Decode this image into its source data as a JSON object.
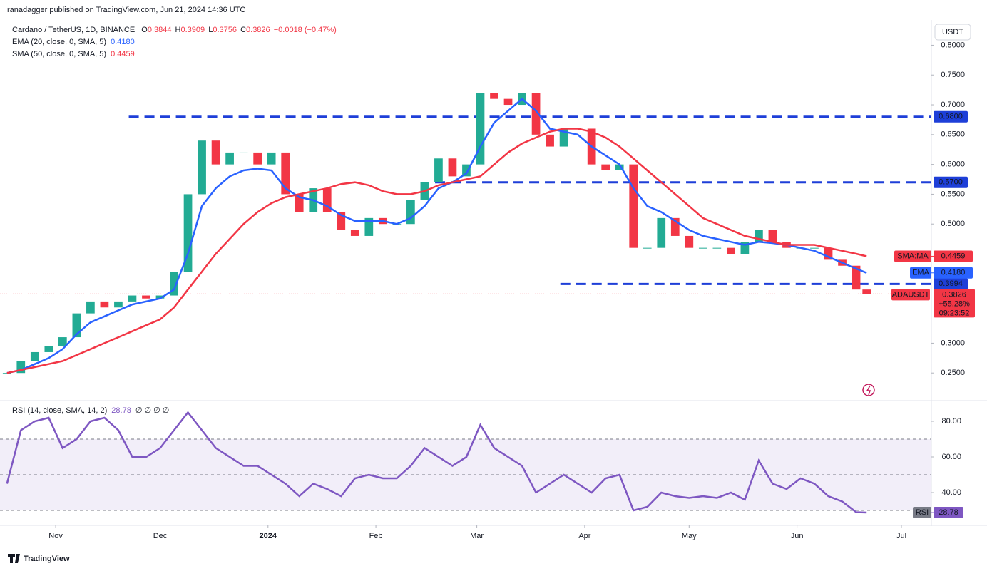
{
  "header": {
    "publisher": "ranadagger published on TradingView.com, Jun 21, 2024 14:36 UTC"
  },
  "legend": {
    "symbol": "Cardano / TetherUS, 1D, BINANCE",
    "ohlc": [
      {
        "key": "O",
        "value": "0.3844"
      },
      {
        "key": "H",
        "value": "0.3909"
      },
      {
        "key": "L",
        "value": "0.3756"
      },
      {
        "key": "C",
        "value": "0.3826"
      }
    ],
    "change": "−0.0018 (−0.47%)"
  },
  "footer": "TradingView",
  "chart_data": [
    {
      "type": "candlestick",
      "unit": "USDT",
      "symbol": "ADAUSDT",
      "up_color": "#22ab94",
      "down_color": "#f23645",
      "x": [
        0,
        4,
        8,
        12,
        16,
        20,
        24,
        28,
        32,
        36,
        40,
        44,
        48,
        52,
        56,
        60,
        64,
        68,
        72,
        76,
        80,
        84,
        88,
        92,
        96,
        100,
        104,
        108,
        112,
        116,
        120,
        124,
        128,
        132,
        136,
        140,
        144,
        148,
        152,
        156,
        160,
        164,
        168,
        172,
        176,
        180,
        184,
        188,
        192,
        196,
        200,
        204,
        208,
        212,
        216,
        220,
        224,
        228,
        232,
        236,
        240,
        244,
        247
      ],
      "values": [
        0.25,
        0.27,
        0.285,
        0.295,
        0.31,
        0.35,
        0.37,
        0.36,
        0.37,
        0.38,
        0.375,
        0.38,
        0.42,
        0.55,
        0.64,
        0.6,
        0.62,
        0.62,
        0.6,
        0.62,
        0.55,
        0.52,
        0.56,
        0.52,
        0.49,
        0.48,
        0.51,
        0.5,
        0.5,
        0.54,
        0.57,
        0.61,
        0.58,
        0.6,
        0.72,
        0.71,
        0.7,
        0.72,
        0.65,
        0.63,
        0.66,
        0.66,
        0.6,
        0.59,
        0.6,
        0.46,
        0.46,
        0.51,
        0.48,
        0.46,
        0.46,
        0.46,
        0.45,
        0.47,
        0.49,
        0.47,
        0.46,
        0.46,
        0.46,
        0.44,
        0.43,
        0.39,
        0.3826
      ],
      "last": {
        "value": 0.3826,
        "label": "0.3826",
        "change": "+55.28%",
        "countdown": "09:23:52"
      },
      "series": [
        {
          "name": "EMA (20, close, 0, SMA, 5)",
          "tag": "EMA",
          "color": "#2962ff",
          "values": [
            0.25,
            0.255,
            0.265,
            0.275,
            0.29,
            0.315,
            0.335,
            0.345,
            0.355,
            0.365,
            0.37,
            0.375,
            0.39,
            0.45,
            0.53,
            0.56,
            0.58,
            0.59,
            0.593,
            0.59,
            0.56,
            0.545,
            0.54,
            0.53,
            0.515,
            0.505,
            0.505,
            0.505,
            0.5,
            0.51,
            0.53,
            0.56,
            0.57,
            0.585,
            0.63,
            0.67,
            0.69,
            0.71,
            0.69,
            0.66,
            0.655,
            0.65,
            0.63,
            0.615,
            0.6,
            0.56,
            0.53,
            0.52,
            0.505,
            0.49,
            0.48,
            0.475,
            0.47,
            0.465,
            0.47,
            0.468,
            0.465,
            0.46,
            0.455,
            0.445,
            0.435,
            0.425,
            0.418
          ],
          "last": {
            "value": 0.418,
            "label": "0.4180"
          }
        },
        {
          "name": "SMA (50, close, 0, SMA, 5)",
          "tag": "SMA:MA",
          "color": "#f23645",
          "values": [
            0.25,
            0.255,
            0.26,
            0.265,
            0.27,
            0.28,
            0.29,
            0.3,
            0.31,
            0.32,
            0.33,
            0.34,
            0.36,
            0.39,
            0.42,
            0.45,
            0.475,
            0.5,
            0.52,
            0.535,
            0.545,
            0.55,
            0.555,
            0.56,
            0.567,
            0.57,
            0.565,
            0.555,
            0.55,
            0.55,
            0.555,
            0.565,
            0.57,
            0.575,
            0.58,
            0.6,
            0.62,
            0.635,
            0.645,
            0.655,
            0.66,
            0.66,
            0.655,
            0.645,
            0.63,
            0.61,
            0.59,
            0.57,
            0.55,
            0.53,
            0.51,
            0.5,
            0.49,
            0.48,
            0.475,
            0.47,
            0.465,
            0.465,
            0.465,
            0.46,
            0.455,
            0.45,
            0.4459
          ],
          "last": {
            "value": 0.4459,
            "label": "0.4459"
          }
        }
      ],
      "levels": [
        {
          "value": 0.68,
          "label": "0.6800",
          "from": 35,
          "color": "#1e3fd8"
        },
        {
          "value": 0.57,
          "label": "0.5700",
          "from": 123,
          "color": "#1e3fd8"
        },
        {
          "value": 0.3994,
          "label": "0.3994",
          "from": 159,
          "color": "#1e3fd8"
        }
      ],
      "xlim": [
        -2,
        265.4
      ],
      "ylim": [
        0.206,
        0.84
      ],
      "yticks": [
        {
          "value": 0.8,
          "label": "0.8000"
        },
        {
          "value": 0.75,
          "label": "0.7500"
        },
        {
          "value": 0.7,
          "label": "0.7000"
        },
        {
          "value": 0.65,
          "label": "0.6500"
        },
        {
          "value": 0.6,
          "label": "0.6000"
        },
        {
          "value": 0.55,
          "label": "0.5500"
        },
        {
          "value": 0.5,
          "label": "0.5000"
        },
        {
          "value": 0.3,
          "label": "0.3000"
        },
        {
          "value": 0.25,
          "label": "0.2500"
        }
      ],
      "xticks": [
        {
          "value": 14,
          "label": "Nov"
        },
        {
          "value": 44,
          "label": "Dec"
        },
        {
          "value": 75,
          "label": "2024"
        },
        {
          "value": 106,
          "label": "Feb"
        },
        {
          "value": 135,
          "label": "Mar"
        },
        {
          "value": 166,
          "label": "Apr"
        },
        {
          "value": 196,
          "label": "May"
        },
        {
          "value": 227,
          "label": "Jun"
        },
        {
          "value": 257,
          "label": "Jul"
        }
      ]
    },
    {
      "type": "line",
      "title": "RSI (14, close, SMA, 14, 2)",
      "tag": "RSI",
      "extra": "∅ ∅ ∅ ∅",
      "x": [
        0,
        4,
        8,
        12,
        16,
        20,
        24,
        28,
        32,
        36,
        40,
        44,
        48,
        52,
        56,
        60,
        64,
        68,
        72,
        76,
        80,
        84,
        88,
        92,
        96,
        100,
        104,
        108,
        112,
        116,
        120,
        124,
        128,
        132,
        136,
        140,
        144,
        148,
        152,
        156,
        160,
        164,
        168,
        172,
        176,
        180,
        184,
        188,
        192,
        196,
        200,
        204,
        208,
        212,
        216,
        220,
        224,
        228,
        232,
        236,
        240,
        244,
        247
      ],
      "series": [
        {
          "name": "RSI",
          "color": "#7e57c2",
          "values": [
            45,
            75,
            80,
            82,
            65,
            70,
            80,
            82,
            75,
            60,
            60,
            65,
            75,
            85,
            75,
            65,
            60,
            55,
            55,
            50,
            45,
            38,
            45,
            42,
            38,
            48,
            50,
            48,
            48,
            55,
            65,
            60,
            55,
            60,
            78,
            65,
            60,
            55,
            40,
            45,
            50,
            45,
            40,
            48,
            50,
            30,
            32,
            40,
            38,
            37,
            38,
            37,
            40,
            36,
            58,
            45,
            42,
            48,
            45,
            38,
            35,
            29,
            28.78
          ]
        }
      ],
      "last": {
        "value": 28.78,
        "label": "28.78"
      },
      "levels": [
        30,
        50,
        70
      ],
      "xlim": [
        -2,
        265.4
      ],
      "ylim": [
        22.4,
        90.4
      ],
      "yticks": [
        {
          "value": 80,
          "label": "80.00"
        },
        {
          "value": 60,
          "label": "60.00"
        },
        {
          "value": 40,
          "label": "40.00"
        }
      ]
    }
  ]
}
